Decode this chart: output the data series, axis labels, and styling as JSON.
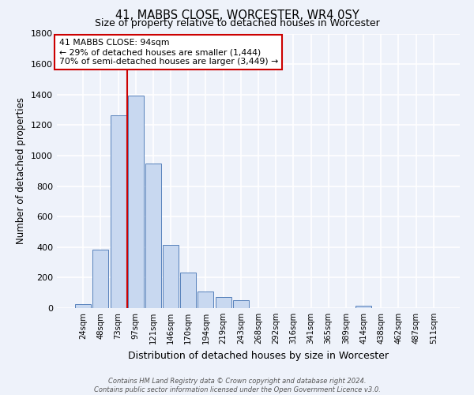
{
  "title": "41, MABBS CLOSE, WORCESTER, WR4 0SY",
  "subtitle": "Size of property relative to detached houses in Worcester",
  "xlabel": "Distribution of detached houses by size in Worcester",
  "ylabel": "Number of detached properties",
  "bar_labels": [
    "24sqm",
    "48sqm",
    "73sqm",
    "97sqm",
    "121sqm",
    "146sqm",
    "170sqm",
    "194sqm",
    "219sqm",
    "243sqm",
    "268sqm",
    "292sqm",
    "316sqm",
    "341sqm",
    "365sqm",
    "389sqm",
    "414sqm",
    "438sqm",
    "462sqm",
    "487sqm",
    "511sqm"
  ],
  "bar_values": [
    25,
    385,
    1265,
    1395,
    950,
    415,
    235,
    110,
    70,
    50,
    0,
    0,
    0,
    0,
    0,
    0,
    15,
    0,
    0,
    0,
    0
  ],
  "bar_color": "#c8d8f0",
  "bar_edge_color": "#5580bb",
  "property_line_color": "#cc0000",
  "property_line_bar_index": 3,
  "ylim": [
    0,
    1800
  ],
  "yticks": [
    0,
    200,
    400,
    600,
    800,
    1000,
    1200,
    1400,
    1600,
    1800
  ],
  "annotation_title": "41 MABBS CLOSE: 94sqm",
  "annotation_line1": "← 29% of detached houses are smaller (1,444)",
  "annotation_line2": "70% of semi-detached houses are larger (3,449) →",
  "annotation_box_color": "#ffffff",
  "annotation_box_edge": "#cc0000",
  "footer1": "Contains HM Land Registry data © Crown copyright and database right 2024.",
  "footer2": "Contains public sector information licensed under the Open Government Licence v3.0.",
  "background_color": "#eef2fa",
  "grid_color": "#ffffff"
}
